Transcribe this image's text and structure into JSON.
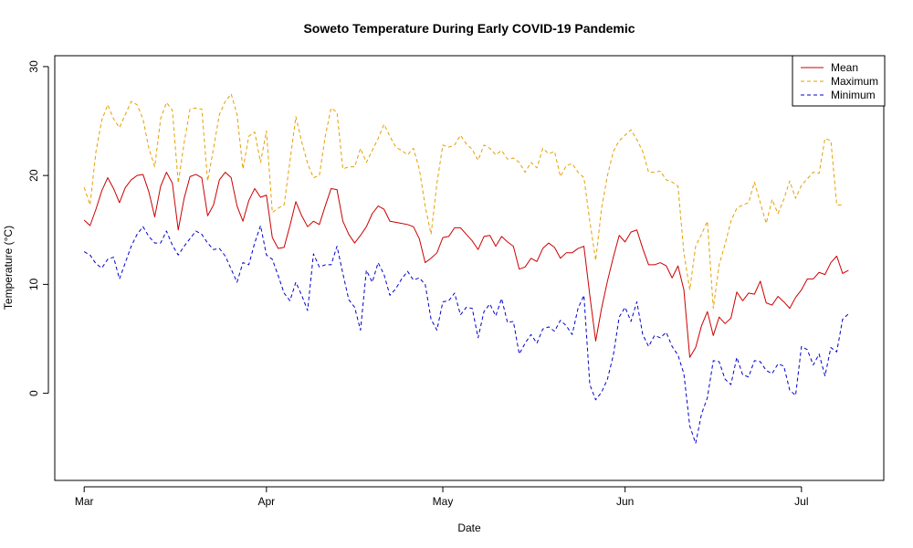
{
  "chart_data": {
    "type": "line",
    "title": "Soweto Temperature During Early COVID-19 Pandemic",
    "xlabel": "Date",
    "ylabel": "Temperature (°C)",
    "x_start": "2020-03-01",
    "x_ticks": [
      {
        "label": "Mar",
        "date": "2020-03-01"
      },
      {
        "label": "Apr",
        "date": "2020-04-01"
      },
      {
        "label": "May",
        "date": "2020-05-01"
      },
      {
        "label": "Jun",
        "date": "2020-06-01"
      },
      {
        "label": "Jul",
        "date": "2020-07-01"
      }
    ],
    "y_ticks": [
      0,
      10,
      20,
      30
    ],
    "xlim": [
      "2020-02-25",
      "2020-07-15"
    ],
    "ylim": [
      -8,
      31
    ],
    "grid": false,
    "legend_position": "top-right",
    "series": [
      {
        "name": "Mean",
        "color": "#cc0000",
        "dash": "solid",
        "values": [
          15.9,
          15.4,
          16.9,
          18.6,
          19.8,
          18.8,
          17.5,
          18.9,
          19.6,
          20.0,
          20.1,
          18.5,
          16.2,
          19.0,
          20.3,
          19.3,
          15.0,
          17.9,
          19.9,
          20.1,
          19.8,
          16.3,
          17.3,
          19.6,
          20.3,
          19.8,
          17.2,
          15.8,
          17.7,
          18.8,
          18.0,
          18.2,
          14.3,
          13.3,
          13.4,
          15.4,
          17.6,
          16.3,
          15.3,
          15.8,
          15.5,
          17.2,
          18.8,
          18.7,
          15.8,
          14.6,
          13.8,
          14.5,
          15.3,
          16.5,
          17.2,
          16.9,
          15.8,
          15.7,
          15.6,
          15.5,
          15.3,
          14.2,
          12.0,
          12.4,
          12.9,
          14.3,
          14.4,
          15.2,
          15.2,
          14.6,
          14.0,
          13.2,
          14.4,
          14.5,
          13.5,
          14.4,
          13.9,
          13.5,
          11.4,
          11.6,
          12.4,
          12.1,
          13.3,
          13.8,
          13.4,
          12.4,
          12.9,
          12.9,
          13.3,
          13.5,
          9.0,
          4.8,
          7.8,
          10.3,
          12.5,
          14.5,
          13.9,
          14.8,
          15.0,
          13.3,
          11.8,
          11.8,
          12.0,
          11.7,
          10.6,
          11.7,
          9.5,
          3.3,
          4.2,
          6.2,
          7.5,
          5.3,
          7.0,
          6.4,
          6.9,
          9.3,
          8.5,
          9.2,
          9.1,
          10.3,
          8.3,
          8.1,
          8.9,
          8.4,
          7.8,
          8.8,
          9.5,
          10.5,
          10.5,
          11.1,
          10.9,
          12.0,
          12.6,
          11.0,
          11.3
        ]
      },
      {
        "name": "Maximum",
        "color": "#e69f00",
        "dash": "dashed",
        "values": [
          18.9,
          17.3,
          22.2,
          25.1,
          26.5,
          25.2,
          24.4,
          25.6,
          26.8,
          26.5,
          25.2,
          22.5,
          20.8,
          25.2,
          26.7,
          26.0,
          19.3,
          23.0,
          26.1,
          26.2,
          26.1,
          19.5,
          22.5,
          25.6,
          26.8,
          27.5,
          25.6,
          20.6,
          23.6,
          24.0,
          21.2,
          24.1,
          16.6,
          17.0,
          17.3,
          21.3,
          25.4,
          23.1,
          21.1,
          19.8,
          20.0,
          23.6,
          26.2,
          25.8,
          20.6,
          20.8,
          20.8,
          22.5,
          21.2,
          22.3,
          23.4,
          24.7,
          23.6,
          22.6,
          22.3,
          21.9,
          22.5,
          20.6,
          17.2,
          14.6,
          19.3,
          22.8,
          22.6,
          22.8,
          23.7,
          22.9,
          22.4,
          21.4,
          22.8,
          22.5,
          21.9,
          22.3,
          21.5,
          21.6,
          21.2,
          20.3,
          21.2,
          20.7,
          22.5,
          22.0,
          22.2,
          19.9,
          20.9,
          21.1,
          20.3,
          19.8,
          15.8,
          12.2,
          17.0,
          20.0,
          22.2,
          23.2,
          23.7,
          24.2,
          23.3,
          22.2,
          20.3,
          20.3,
          20.4,
          19.6,
          19.4,
          19.0,
          12.9,
          9.5,
          13.5,
          14.6,
          15.8,
          7.8,
          11.8,
          13.7,
          15.8,
          17.0,
          17.3,
          17.5,
          19.4,
          17.5,
          15.6,
          17.8,
          16.5,
          17.8,
          19.5,
          17.9,
          19.1,
          19.7,
          20.3,
          20.2,
          23.4,
          23.2,
          17.3,
          17.3
        ]
      },
      {
        "name": "Minimum",
        "color": "#0000cc",
        "dash": "dashed",
        "values": [
          13.0,
          12.7,
          11.9,
          11.5,
          12.3,
          12.5,
          10.5,
          12.0,
          13.5,
          14.6,
          15.3,
          14.4,
          13.8,
          13.8,
          14.9,
          13.6,
          12.7,
          13.5,
          14.2,
          14.9,
          14.6,
          13.8,
          13.2,
          13.3,
          12.6,
          11.4,
          10.2,
          12.0,
          11.8,
          13.8,
          15.4,
          12.7,
          12.3,
          10.8,
          9.2,
          8.5,
          10.2,
          9.0,
          7.6,
          12.8,
          11.6,
          11.8,
          11.8,
          13.5,
          11.0,
          8.6,
          7.9,
          5.8,
          11.3,
          10.2,
          12.0,
          10.9,
          9.0,
          9.6,
          10.5,
          11.2,
          10.4,
          10.6,
          10.0,
          6.8,
          5.8,
          8.4,
          8.5,
          9.2,
          7.2,
          7.9,
          7.8,
          5.1,
          7.5,
          8.2,
          7.1,
          8.7,
          6.5,
          6.6,
          3.6,
          4.6,
          5.4,
          4.6,
          5.9,
          6.1,
          5.7,
          6.7,
          6.2,
          5.4,
          7.8,
          9.0,
          0.8,
          -0.6,
          0.1,
          1.3,
          3.5,
          7.0,
          7.9,
          6.6,
          8.4,
          5.4,
          4.3,
          5.3,
          5.1,
          5.6,
          4.3,
          3.5,
          1.8,
          -3.0,
          -4.6,
          -1.9,
          -0.4,
          3.0,
          2.9,
          1.3,
          0.8,
          3.3,
          1.7,
          1.5,
          3.0,
          2.9,
          2.1,
          1.8,
          2.7,
          2.5,
          0.3,
          -0.2,
          4.3,
          4.0,
          2.6,
          3.6,
          1.6,
          4.2,
          3.8,
          6.8,
          7.3
        ]
      }
    ]
  }
}
